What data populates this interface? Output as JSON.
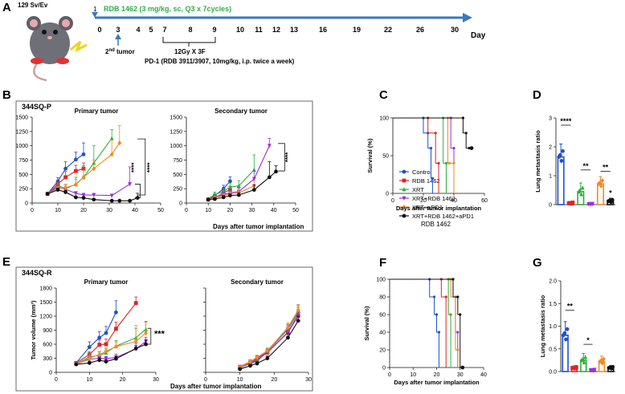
{
  "panel_labels": {
    "A": "A",
    "B": "B",
    "C": "C",
    "D": "D",
    "E": "E",
    "F": "F",
    "G": "G"
  },
  "timeline": {
    "strain": "129 Sv/Ev",
    "day_one_mark": "1",
    "treatment": "RDB 1462 (3 mg/kg, sc, Q3 x 7cycles)",
    "days": [
      "0",
      "3",
      "4",
      "5",
      "7",
      "8",
      "9",
      "10",
      "11",
      "12",
      "13",
      "16",
      "19",
      "22",
      "26",
      "30"
    ],
    "axis_label": "Day",
    "second_tumor_prefix": "2",
    "second_tumor_sup": "nd",
    "second_tumor_suffix": " tumor",
    "radiation": "12Gy X 3F",
    "pd1": "PD-1 (RDB 3911/3907, 10mg/kg, i.p. twice a week)",
    "colors": {
      "treatment": "#2eae4a",
      "axis": "#3a78c2"
    }
  },
  "section_b": {
    "title": "344SQ-P"
  },
  "section_e": {
    "title": "344SQ-R"
  },
  "legend": {
    "entries": [
      {
        "label": "Control",
        "color": "#1f4fd6",
        "marker": "circle"
      },
      {
        "label": "RDB 1462",
        "color": "#e02424",
        "marker": "square"
      },
      {
        "label": "XRT",
        "color": "#2fae3a",
        "marker": "triangle"
      },
      {
        "label": "XRT+RDB 1462",
        "color": "#9b30d9",
        "marker": "triangle-down"
      },
      {
        "label": "XRT+aPD1",
        "color": "#f08a24",
        "marker": "diamond"
      },
      {
        "label": "XRT+RDB 1462+aPD1",
        "color": "#111111",
        "marker": "circle"
      }
    ]
  },
  "rdb_caption": "RDB 1462",
  "chart_data": [
    {
      "id": "B-primary",
      "type": "line",
      "title": "Primary tumor",
      "xlabel": "",
      "ylabel": "",
      "xlim": [
        0,
        50
      ],
      "ylim": [
        0,
        1500
      ],
      "xticks": [
        "0",
        "10",
        "20",
        "30",
        "40",
        "50"
      ],
      "yticks": [
        "0",
        "250",
        "500",
        "750",
        "1000",
        "1250",
        "1500"
      ],
      "sig": [
        "****",
        "****"
      ],
      "series": [
        {
          "name": "Control",
          "x": [
            6,
            10,
            13,
            17,
            20
          ],
          "y": [
            160,
            380,
            600,
            760,
            850
          ],
          "err": [
            10,
            60,
            120,
            130,
            200
          ]
        },
        {
          "name": "RDB 1462",
          "x": [
            6,
            10,
            13,
            17,
            20
          ],
          "y": [
            160,
            330,
            450,
            560,
            600
          ],
          "err": [
            10,
            50,
            100,
            100,
            100
          ]
        },
        {
          "name": "XRT",
          "x": [
            6,
            10,
            13,
            17,
            20,
            24,
            31
          ],
          "y": [
            160,
            310,
            250,
            330,
            450,
            700,
            1130
          ],
          "err": [
            10,
            40,
            60,
            120,
            200,
            300,
            150
          ]
        },
        {
          "name": "XRT+RDB 1462",
          "x": [
            6,
            10,
            13,
            17,
            20,
            24,
            31,
            38
          ],
          "y": [
            160,
            280,
            240,
            170,
            140,
            140,
            130,
            330
          ],
          "err": [
            10,
            30,
            40,
            30,
            30,
            30,
            20,
            300
          ]
        },
        {
          "name": "XRT+aPD1",
          "x": [
            6,
            10,
            13,
            17,
            20,
            24,
            31,
            34
          ],
          "y": [
            160,
            250,
            270,
            320,
            450,
            600,
            850,
            1050
          ],
          "err": [
            10,
            40,
            60,
            90,
            120,
            150,
            250,
            300
          ]
        },
        {
          "name": "XRT+RDB 1462+aPD1",
          "x": [
            6,
            10,
            13,
            17,
            20,
            24,
            31,
            34,
            38,
            41
          ],
          "y": [
            160,
            230,
            190,
            100,
            90,
            60,
            40,
            40,
            40,
            90
          ],
          "err": [
            10,
            30,
            30,
            20,
            20,
            15,
            10,
            10,
            10,
            80
          ]
        }
      ]
    },
    {
      "id": "B-secondary",
      "type": "line",
      "title": "Secondary tumor",
      "xlabel": "",
      "ylabel": "",
      "xlim": [
        0,
        50
      ],
      "ylim": [
        0,
        1500
      ],
      "xticks": [
        "0",
        "10",
        "20",
        "30",
        "40",
        "50"
      ],
      "yticks": [
        "0",
        "250",
        "500",
        "750",
        "1000",
        "1250",
        "1500"
      ],
      "sig": [
        "****"
      ],
      "series": [
        {
          "name": "Control",
          "x": [
            10,
            13,
            17,
            20
          ],
          "y": [
            60,
            130,
            250,
            380
          ],
          "err": [
            20,
            30,
            60,
            80
          ]
        },
        {
          "name": "RDB 1462",
          "x": [
            10,
            13,
            17,
            20
          ],
          "y": [
            60,
            90,
            180,
            230
          ],
          "err": [
            20,
            20,
            40,
            60
          ]
        },
        {
          "name": "XRT",
          "x": [
            10,
            13,
            17,
            20,
            24,
            31
          ],
          "y": [
            70,
            150,
            200,
            280,
            300,
            580
          ],
          "err": [
            20,
            40,
            50,
            70,
            90,
            260
          ]
        },
        {
          "name": "XRT+RDB 1462",
          "x": [
            10,
            13,
            17,
            20,
            24,
            31,
            38
          ],
          "y": [
            60,
            100,
            150,
            180,
            200,
            420,
            1000
          ],
          "err": [
            20,
            30,
            40,
            40,
            60,
            140,
            130
          ]
        },
        {
          "name": "XRT+aPD1",
          "x": [
            10,
            13,
            17,
            20,
            24,
            31
          ],
          "y": [
            60,
            90,
            130,
            160,
            180,
            300
          ],
          "err": [
            20,
            20,
            30,
            40,
            50,
            90
          ]
        },
        {
          "name": "XRT+RDB 1462+aPD1",
          "x": [
            10,
            13,
            17,
            20,
            24,
            31,
            38,
            41
          ],
          "y": [
            60,
            70,
            100,
            130,
            140,
            230,
            450,
            550
          ],
          "err": [
            10,
            20,
            30,
            30,
            40,
            90,
            270,
            100
          ]
        }
      ]
    },
    {
      "id": "C",
      "type": "line",
      "title": "",
      "xlabel": "Days after tumor implantation",
      "ylabel": "Survival (%)",
      "xlim": [
        0,
        60
      ],
      "ylim": [
        0,
        100
      ],
      "xticks": [
        "0",
        "20",
        "40",
        "60"
      ],
      "yticks": [
        "0",
        "50",
        "100"
      ],
      "series": [
        {
          "name": "Control",
          "x": [
            0,
            20,
            23,
            25,
            26
          ],
          "y": [
            100,
            80,
            60,
            20,
            0
          ]
        },
        {
          "name": "RDB 1462",
          "x": [
            0,
            23,
            28,
            30
          ],
          "y": [
            100,
            80,
            40,
            0
          ]
        },
        {
          "name": "XRT",
          "x": [
            0,
            33,
            35
          ],
          "y": [
            100,
            40,
            0
          ]
        },
        {
          "name": "XRT+RDB 1462",
          "x": [
            0,
            38,
            40
          ],
          "y": [
            100,
            60,
            0
          ]
        },
        {
          "name": "XRT+aPD1",
          "x": [
            0,
            36,
            37,
            40
          ],
          "y": [
            100,
            40,
            40,
            0
          ]
        },
        {
          "name": "XRT+RDB 1462+aPD1",
          "x": [
            0,
            46,
            48,
            50
          ],
          "y": [
            100,
            80,
            60,
            60
          ]
        }
      ]
    },
    {
      "id": "D",
      "type": "bar",
      "title": "",
      "xlabel": "",
      "ylabel": "Lung metastasis ratio",
      "ylim": [
        0,
        3
      ],
      "yticks": [
        "0",
        "1",
        "2",
        "3"
      ],
      "categories": [
        "Control",
        "RDB 1462",
        "XRT",
        "XRT+RDB 1462",
        "XRT+aPD1",
        "XRT+RDB 1462+aPD1"
      ],
      "values": [
        1.65,
        0.05,
        0.45,
        0.02,
        0.72,
        0.12
      ],
      "errors": [
        0.45,
        0.05,
        0.3,
        0.02,
        0.25,
        0.1
      ],
      "sig": [
        "****",
        "**",
        "**",
        "*"
      ]
    },
    {
      "id": "E-primary",
      "type": "line",
      "title": "Primary tumor",
      "xlabel": "",
      "ylabel": "Tumor volume (mm³)",
      "xlim": [
        0,
        30
      ],
      "ylim": [
        0,
        1800
      ],
      "xticks": [
        "0",
        "10",
        "20",
        "30"
      ],
      "yticks": [
        "0",
        "300",
        "600",
        "900",
        "1200",
        "1500",
        "1800"
      ],
      "sig": [
        "***"
      ],
      "series": [
        {
          "name": "Control",
          "x": [
            6,
            10,
            13,
            15,
            18
          ],
          "y": [
            200,
            540,
            740,
            840,
            1280
          ],
          "err": [
            20,
            110,
            130,
            140,
            250
          ]
        },
        {
          "name": "RDB 1462",
          "x": [
            6,
            10,
            13,
            15,
            18,
            24
          ],
          "y": [
            200,
            380,
            590,
            600,
            930,
            1480
          ],
          "err": [
            20,
            60,
            100,
            110,
            140,
            130
          ]
        },
        {
          "name": "XRT",
          "x": [
            6,
            10,
            13,
            15,
            18,
            24,
            27
          ],
          "y": [
            180,
            330,
            360,
            420,
            560,
            740,
            920
          ],
          "err": [
            20,
            60,
            70,
            80,
            120,
            200,
            170
          ]
        },
        {
          "name": "XRT+RDB 1462",
          "x": [
            6,
            10,
            13,
            15,
            18,
            24,
            27
          ],
          "y": [
            180,
            280,
            300,
            290,
            320,
            500,
            660
          ],
          "err": [
            20,
            50,
            60,
            50,
            70,
            120,
            90
          ]
        },
        {
          "name": "XRT+aPD1",
          "x": [
            6,
            10,
            13,
            15,
            18,
            24,
            27
          ],
          "y": [
            180,
            300,
            380,
            450,
            550,
            660,
            840
          ],
          "err": [
            20,
            60,
            70,
            80,
            100,
            340,
            230
          ]
        },
        {
          "name": "XRT+RDB 1462+aPD1",
          "x": [
            6,
            10,
            13,
            15,
            18,
            24,
            27
          ],
          "y": [
            170,
            200,
            260,
            230,
            290,
            510,
            600
          ],
          "err": [
            20,
            40,
            50,
            40,
            50,
            60,
            90
          ]
        }
      ]
    },
    {
      "id": "E-secondary",
      "type": "line",
      "title": "Secondary tumor",
      "xlabel": "",
      "ylabel": "",
      "xlim": [
        0,
        30
      ],
      "ylim": [
        0,
        1800
      ],
      "xticks": [
        "0",
        "10",
        "20",
        "30"
      ],
      "yticks": [],
      "series": [
        {
          "name": "Control",
          "x": [
            10,
            13,
            15,
            18,
            24,
            27
          ],
          "y": [
            100,
            190,
            240,
            450,
            920,
            1280
          ],
          "err": [
            20,
            30,
            40,
            60,
            90,
            110
          ]
        },
        {
          "name": "RDB 1462",
          "x": [
            10,
            13,
            15,
            18,
            24,
            27
          ],
          "y": [
            100,
            200,
            270,
            420,
            850,
            1200
          ],
          "err": [
            20,
            30,
            40,
            50,
            80,
            100
          ]
        },
        {
          "name": "XRT",
          "x": [
            10,
            13,
            15,
            18,
            24,
            27
          ],
          "y": [
            110,
            220,
            290,
            450,
            940,
            1300
          ],
          "err": [
            20,
            40,
            50,
            60,
            90,
            130
          ]
        },
        {
          "name": "XRT+RDB 1462",
          "x": [
            10,
            13,
            15,
            18,
            24,
            27
          ],
          "y": [
            120,
            230,
            300,
            430,
            860,
            1230
          ],
          "err": [
            20,
            40,
            50,
            60,
            90,
            110
          ]
        },
        {
          "name": "XRT+aPD1",
          "x": [
            10,
            13,
            15,
            18,
            24,
            27
          ],
          "y": [
            110,
            230,
            320,
            460,
            960,
            1330
          ],
          "err": [
            20,
            40,
            50,
            60,
            100,
            120
          ]
        },
        {
          "name": "XRT+RDB 1462+aPD1",
          "x": [
            10,
            13,
            15,
            18,
            24,
            27
          ],
          "y": [
            70,
            140,
            190,
            300,
            740,
            1100
          ],
          "err": [
            10,
            30,
            30,
            50,
            80,
            100
          ]
        }
      ]
    },
    {
      "id": "F",
      "type": "line",
      "title": "",
      "xlabel": "Days after tumor implantation",
      "ylabel": "Survival (%)",
      "xlim": [
        0,
        40
      ],
      "ylim": [
        0,
        100
      ],
      "xticks": [
        "0",
        "10",
        "20",
        "30",
        "40"
      ],
      "yticks": [
        "0",
        "20",
        "40",
        "60",
        "80",
        "100"
      ],
      "series": [
        {
          "name": "Control",
          "x": [
            0,
            17,
            19,
            20,
            21
          ],
          "y": [
            100,
            80,
            60,
            40,
            0
          ]
        },
        {
          "name": "RDB 1462",
          "x": [
            0,
            22,
            24
          ],
          "y": [
            100,
            80,
            0
          ]
        },
        {
          "name": "XRT",
          "x": [
            0,
            25,
            26
          ],
          "y": [
            100,
            60,
            0
          ]
        },
        {
          "name": "XRT+RDB 1462",
          "x": [
            0,
            27,
            28,
            29
          ],
          "y": [
            100,
            80,
            40,
            0
          ]
        },
        {
          "name": "XRT+aPD1",
          "x": [
            0,
            26,
            28,
            29
          ],
          "y": [
            100,
            80,
            20,
            0
          ]
        },
        {
          "name": "XRT+RDB 1462+aPD1",
          "x": [
            0,
            27,
            29,
            30
          ],
          "y": [
            100,
            80,
            60,
            0
          ]
        }
      ]
    },
    {
      "id": "G",
      "type": "bar",
      "title": "",
      "xlabel": "",
      "ylabel": "Lung metastasis ratio",
      "ylim": [
        0,
        2.0
      ],
      "yticks": [
        "0.0",
        "0.5",
        "1.0",
        "1.5",
        "2.0"
      ],
      "categories": [
        "Control",
        "RDB 1462",
        "XRT",
        "XRT+RDB 1462",
        "XRT+aPD1",
        "XRT+RDB 1462+aPD1"
      ],
      "values": [
        0.8,
        0.08,
        0.25,
        0.03,
        0.22,
        0.08
      ],
      "errors": [
        0.3,
        0.04,
        0.15,
        0.02,
        0.12,
        0.05
      ],
      "sig": [
        "**",
        "*"
      ]
    }
  ]
}
